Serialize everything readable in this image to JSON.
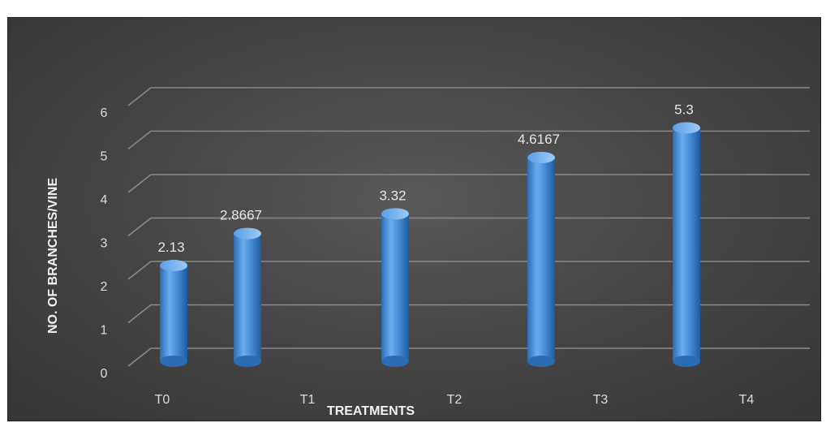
{
  "chart_data": {
    "type": "bar",
    "title": "",
    "xlabel": "TREATMENTS",
    "ylabel": "NO. OF BRANCHES/VINE",
    "ylim": [
      0,
      6
    ],
    "yticks": [
      0,
      1,
      2,
      3,
      4,
      5,
      6
    ],
    "categories": [
      "T0",
      "T1",
      "T2",
      "T3",
      "T4"
    ],
    "bars": [
      {
        "label": "2.13",
        "value": 2.13
      },
      {
        "label": "2.8667",
        "value": 2.8667
      },
      {
        "label": "3.32",
        "value": 3.32
      },
      {
        "label": "4.6167",
        "value": 4.6167
      },
      {
        "label": "5.3",
        "value": 5.3
      }
    ],
    "grid": true,
    "legend": "none",
    "colors": {
      "bar": "#4a90d9",
      "background": "#404040",
      "grid": "#8a8a8a"
    }
  }
}
